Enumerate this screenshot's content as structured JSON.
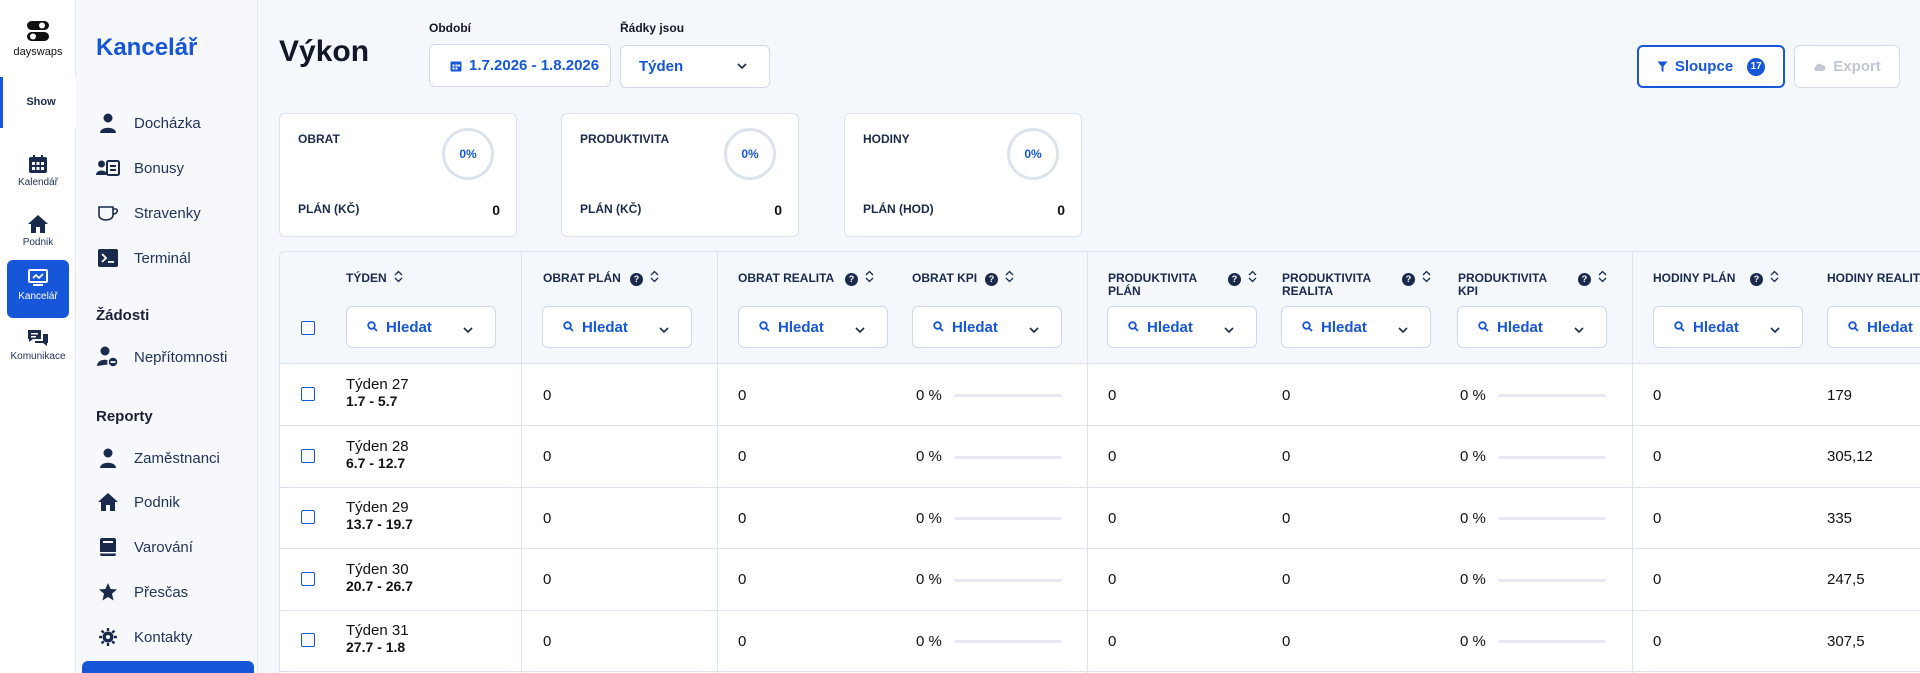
{
  "app": {
    "logo_text": "dayswaps"
  },
  "rail": {
    "show_label": "Show",
    "items": [
      {
        "label": "Kalendář",
        "icon": "calendar-icon"
      },
      {
        "label": "Podnik",
        "icon": "home-icon"
      },
      {
        "label": "Kancelář",
        "icon": "office-icon",
        "active": true
      },
      {
        "label": "Komunikace",
        "icon": "chat-icon"
      }
    ]
  },
  "sidebar": {
    "title": "Kancelář",
    "items": [
      {
        "label": "Docházka",
        "icon": "person-icon"
      },
      {
        "label": "Bonusy",
        "icon": "id-card-icon"
      },
      {
        "label": "Stravenky",
        "icon": "cup-icon"
      },
      {
        "label": "Terminál",
        "icon": "terminal-icon"
      }
    ],
    "section_zadosti": "Žádosti",
    "zadosti_items": [
      {
        "label": "Nepřítomnosti",
        "icon": "person-absence-icon"
      }
    ],
    "section_reporty": "Reporty",
    "reporty_items": [
      {
        "label": "Zaměstnanci",
        "icon": "person-icon"
      },
      {
        "label": "Podnik",
        "icon": "home-icon"
      },
      {
        "label": "Varování",
        "icon": "book-icon"
      },
      {
        "label": "Přesčas",
        "icon": "star-icon"
      },
      {
        "label": "Kontakty",
        "icon": "gear-icon"
      }
    ]
  },
  "header": {
    "title": "Výkon",
    "period_label": "Období",
    "period_value": "1.7.2026 - 1.8.2026",
    "rows_label": "Řádky jsou",
    "rows_value": "Týden",
    "columns_button": "Sloupce",
    "columns_count": "17",
    "export_button": "Export"
  },
  "cards": [
    {
      "title": "OBRAT",
      "percent": "0%",
      "plan_label": "PLÁN (KČ)",
      "plan_value": "0"
    },
    {
      "title": "PRODUKTIVITA",
      "percent": "0%",
      "plan_label": "PLÁN (KČ)",
      "plan_value": "0"
    },
    {
      "title": "HODINY",
      "percent": "0%",
      "plan_label": "PLÁN (HOD)",
      "plan_value": "0"
    }
  ],
  "table": {
    "filter_placeholder": "Hledat",
    "columns": [
      {
        "label": "TÝDEN",
        "help": false
      },
      {
        "label": "OBRAT PLÁN",
        "help": true
      },
      {
        "label": "OBRAT REALITA",
        "help": true
      },
      {
        "label": "OBRAT KPI",
        "help": true
      },
      {
        "label": "PRODUKTIVITA PLÁN",
        "help": true
      },
      {
        "label": "PRODUKTIVITA REALITA",
        "help": true
      },
      {
        "label": "PRODUKTIVITA KPI",
        "help": true
      },
      {
        "label": "HODINY PLÁN",
        "help": true
      },
      {
        "label": "HODINY REALITA",
        "help": false
      }
    ],
    "rows": [
      {
        "week": "Týden 27",
        "range": "1.7 - 5.7",
        "obrat_plan": "0",
        "obrat_realita": "0",
        "obrat_kpi": "0 %",
        "obrat_kpi_fill": 0,
        "prod_plan": "0",
        "prod_realita": "0",
        "prod_kpi": "0 %",
        "prod_kpi_fill": 0,
        "hodiny_plan": "0",
        "hodiny_realita": "179"
      },
      {
        "week": "Týden 28",
        "range": "6.7 - 12.7",
        "obrat_plan": "0",
        "obrat_realita": "0",
        "obrat_kpi": "0 %",
        "obrat_kpi_fill": 0,
        "prod_plan": "0",
        "prod_realita": "0",
        "prod_kpi": "0 %",
        "prod_kpi_fill": 0,
        "hodiny_plan": "0",
        "hodiny_realita": "305,12"
      },
      {
        "week": "Týden 29",
        "range": "13.7 - 19.7",
        "obrat_plan": "0",
        "obrat_realita": "0",
        "obrat_kpi": "0 %",
        "obrat_kpi_fill": 0,
        "prod_plan": "0",
        "prod_realita": "0",
        "prod_kpi": "0 %",
        "prod_kpi_fill": 0,
        "hodiny_plan": "0",
        "hodiny_realita": "335"
      },
      {
        "week": "Týden 30",
        "range": "20.7 - 26.7",
        "obrat_plan": "0",
        "obrat_realita": "0",
        "obrat_kpi": "0 %",
        "obrat_kpi_fill": 0,
        "prod_plan": "0",
        "prod_realita": "0",
        "prod_kpi": "0 %",
        "prod_kpi_fill": 0,
        "hodiny_plan": "0",
        "hodiny_realita": "247,5"
      },
      {
        "week": "Týden 31",
        "range": "27.7 - 1.8",
        "obrat_plan": "0",
        "obrat_realita": "0",
        "obrat_kpi": "0 %",
        "obrat_kpi_fill": 0,
        "prod_plan": "0",
        "prod_realita": "0",
        "prod_kpi": "0 %",
        "prod_kpi_fill": 0,
        "hodiny_plan": "0",
        "hodiny_realita": "307,5"
      }
    ]
  },
  "colors": {
    "accent": "#1656d8",
    "text_dark": "#1a2a4d",
    "border": "#dbe3ef"
  }
}
